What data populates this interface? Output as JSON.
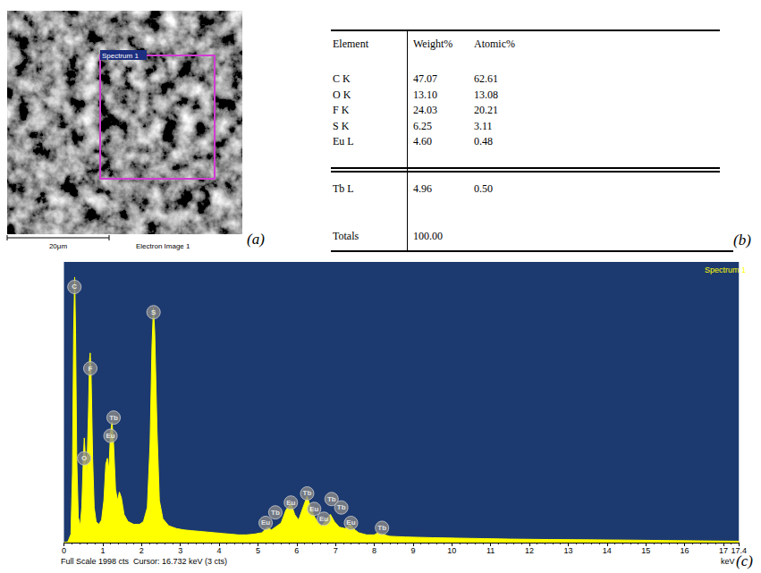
{
  "panel_a": {
    "letter": "(a)",
    "box_label": "Spectrum 1",
    "scale_bar": "20μm",
    "caption": "Electron Image 1"
  },
  "panel_b": {
    "letter": "(b)",
    "header": [
      "Element",
      "Weight%",
      "Atomic%"
    ],
    "rows": [
      [
        "C K",
        "47.07",
        "62.61"
      ],
      [
        "O K",
        "13.10",
        "13.08"
      ],
      [
        "F K",
        "24.03",
        "20.21"
      ],
      [
        "S K",
        "6.25",
        "3.11"
      ],
      [
        "Eu L",
        "4.60",
        "0.48"
      ]
    ],
    "extra_rows": [
      [
        "Tb L",
        "4.96",
        "0.50"
      ]
    ],
    "total_row": [
      "Totals",
      "100.00"
    ]
  },
  "chart_data": {
    "type": "line",
    "letter": "(c)",
    "title": "Spectrum 1",
    "x_label": "keV",
    "footer": "Full Scale 1998 cts  Cursor: 16.732 keV (3 cts)",
    "color": "#ffff00",
    "x": [
      0.0,
      0.1,
      0.18,
      0.22,
      0.25,
      0.277,
      0.3,
      0.33,
      0.37,
      0.42,
      0.46,
      0.5,
      0.525,
      0.55,
      0.59,
      0.63,
      0.66,
      0.677,
      0.7,
      0.74,
      0.78,
      0.83,
      0.9,
      0.97,
      1.03,
      1.08,
      1.12,
      1.16,
      1.2,
      1.24,
      1.28,
      1.33,
      1.38,
      1.43,
      1.48,
      1.55,
      1.65,
      1.8,
      1.95,
      2.05,
      2.15,
      2.22,
      2.27,
      2.307,
      2.34,
      2.4,
      2.46,
      2.55,
      2.7,
      2.9,
      3.1,
      3.3,
      3.5,
      3.7,
      3.9,
      4.1,
      4.3,
      4.5,
      4.7,
      4.9,
      5.1,
      5.25,
      5.35,
      5.5,
      5.6,
      5.72,
      5.85,
      5.95,
      6.05,
      6.15,
      6.27,
      6.35,
      6.45,
      6.55,
      6.65,
      6.75,
      6.87,
      6.97,
      7.1,
      7.25,
      7.38,
      7.48,
      7.6,
      7.8,
      8.0,
      8.1,
      8.2,
      8.4,
      8.8,
      9.5,
      10.5,
      11.5,
      12.5,
      13.5,
      14.5,
      15.5,
      16.5,
      17.4
    ],
    "values": [
      0,
      5,
      60,
      500,
      1500,
      1890,
      1500,
      600,
      180,
      120,
      250,
      600,
      745,
      620,
      500,
      900,
      1300,
      1350,
      1200,
      600,
      250,
      150,
      130,
      160,
      300,
      560,
      600,
      520,
      780,
      860,
      700,
      380,
      300,
      360,
      320,
      200,
      150,
      130,
      130,
      150,
      250,
      700,
      1400,
      1670,
      1500,
      800,
      300,
      170,
      120,
      100,
      90,
      85,
      80,
      75,
      70,
      65,
      60,
      55,
      55,
      60,
      70,
      110,
      90,
      120,
      140,
      230,
      280,
      200,
      160,
      240,
      330,
      260,
      190,
      140,
      120,
      160,
      200,
      150,
      110,
      100,
      130,
      95,
      70,
      55,
      55,
      70,
      60,
      45,
      40,
      35,
      30,
      25,
      22,
      20,
      18,
      15,
      12,
      10
    ],
    "xlim": [
      0,
      17.4
    ],
    "xticks": [
      0,
      1,
      2,
      3,
      4,
      5,
      6,
      7,
      8,
      9,
      10,
      11,
      12,
      13,
      14,
      15,
      16,
      17
    ],
    "ylim": [
      0,
      1998
    ],
    "tick_labels": "x",
    "grid": false,
    "peak_labels": [
      {
        "label": "C",
        "x": 0.27,
        "y": 1820
      },
      {
        "label": "O",
        "x": 0.52,
        "y": 600
      },
      {
        "label": "F",
        "x": 0.68,
        "y": 1240
      },
      {
        "label": "Eu",
        "x": 1.2,
        "y": 760
      },
      {
        "label": "Tb",
        "x": 1.28,
        "y": 890
      },
      {
        "label": "S",
        "x": 2.31,
        "y": 1640
      },
      {
        "label": "Eu",
        "x": 5.2,
        "y": 140
      },
      {
        "label": "Tb",
        "x": 5.45,
        "y": 215
      },
      {
        "label": "Eu",
        "x": 5.85,
        "y": 285
      },
      {
        "label": "Tb",
        "x": 6.27,
        "y": 350
      },
      {
        "label": "Eu",
        "x": 6.45,
        "y": 240
      },
      {
        "label": "Eu",
        "x": 6.7,
        "y": 170
      },
      {
        "label": "Tb",
        "x": 6.9,
        "y": 310
      },
      {
        "label": "Tb",
        "x": 7.15,
        "y": 250
      },
      {
        "label": "Eu",
        "x": 7.4,
        "y": 140
      },
      {
        "label": "Tb",
        "x": 8.2,
        "y": 105
      }
    ]
  }
}
